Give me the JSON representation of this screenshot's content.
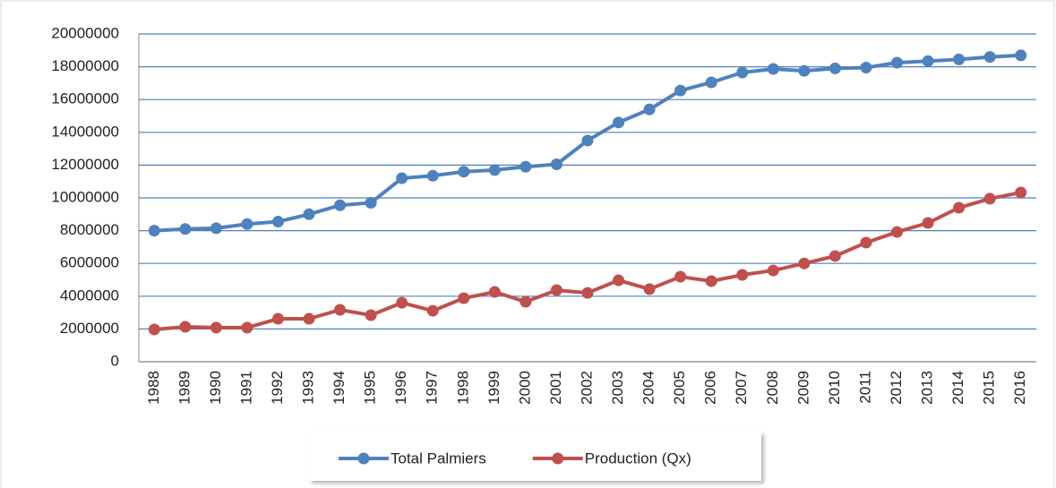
{
  "chart_data": {
    "type": "line",
    "categories": [
      "1988",
      "1989",
      "1990",
      "1991",
      "1992",
      "1993",
      "1994",
      "1995",
      "1996",
      "1997",
      "1998",
      "1999",
      "2000",
      "2001",
      "2002",
      "2003",
      "2004",
      "2005",
      "2006",
      "2007",
      "2008",
      "2009",
      "2010",
      "2011",
      "2012",
      "2013",
      "2014",
      "2015",
      "2016"
    ],
    "series": [
      {
        "name": "Total Palmiers",
        "color": "#4f81bd",
        "values": [
          8000000,
          8100000,
          8150000,
          8400000,
          8550000,
          9000000,
          9550000,
          9700000,
          11200000,
          11350000,
          11600000,
          11700000,
          11900000,
          12050000,
          13500000,
          14600000,
          15400000,
          16550000,
          17050000,
          17650000,
          17870000,
          17750000,
          17900000,
          17950000,
          18250000,
          18350000,
          18450000,
          18600000,
          18700000
        ]
      },
      {
        "name": "Production (Qx)",
        "color": "#c0504d",
        "values": [
          1970000,
          2130000,
          2080000,
          2080000,
          2620000,
          2620000,
          3170000,
          2840000,
          3600000,
          3110000,
          3880000,
          4260000,
          3660000,
          4370000,
          4200000,
          4970000,
          4430000,
          5190000,
          4920000,
          5300000,
          5570000,
          6000000,
          6450000,
          7270000,
          7920000,
          8470000,
          9400000,
          9950000,
          10330000
        ]
      }
    ],
    "ylim": [
      0,
      20000000
    ],
    "yticks": [
      0,
      2000000,
      4000000,
      6000000,
      8000000,
      10000000,
      12000000,
      14000000,
      16000000,
      18000000,
      20000000
    ],
    "grid": true,
    "grid_color": "#4f81bd",
    "legend": "bottom"
  }
}
